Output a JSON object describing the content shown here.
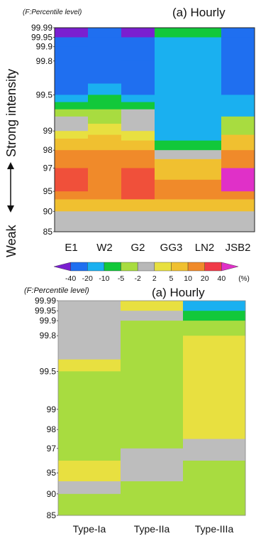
{
  "chart_data": [
    {
      "type": "heatmap",
      "panel": "top",
      "note": "(F:Percentile level)",
      "title": "(a) Hourly",
      "ylabel_strong": "Strong intensity",
      "ylabel_weak": "Weak",
      "yticks": [
        "99.99",
        "99.95",
        "99.9",
        "99.8",
        "99.5",
        "99",
        "98",
        "97",
        "95",
        "90",
        "85"
      ],
      "columns": [
        "E1",
        "W2",
        "G2",
        "GG3",
        "LN2",
        "JSB2"
      ],
      "cells": [
        [
          [
            99.99,
            99.95,
            "-40"
          ],
          [
            99.95,
            99.9,
            "-20"
          ],
          [
            99.9,
            99.5,
            "-20"
          ],
          [
            99.5,
            99.4,
            "-10"
          ],
          [
            99.4,
            99.3,
            "-5"
          ],
          [
            99.3,
            99.2,
            "-2"
          ],
          [
            99.2,
            99,
            "2"
          ],
          [
            99,
            98.6,
            "5"
          ],
          [
            98.6,
            98,
            "10"
          ],
          [
            98,
            97,
            "20"
          ],
          [
            97,
            95,
            "30"
          ],
          [
            95,
            93,
            "20"
          ],
          [
            93,
            90,
            "10"
          ],
          [
            90,
            85,
            "2"
          ]
        ],
        [
          [
            99.99,
            99.95,
            "-20"
          ],
          [
            99.95,
            99.6,
            "-20"
          ],
          [
            99.6,
            99.5,
            "-10"
          ],
          [
            99.5,
            99.3,
            "-5"
          ],
          [
            99.3,
            99.1,
            "-2"
          ],
          [
            99.1,
            98.8,
            "5"
          ],
          [
            98.8,
            98,
            "10"
          ],
          [
            98,
            93,
            "20"
          ],
          [
            93,
            90,
            "10"
          ],
          [
            90,
            85,
            "2"
          ]
        ],
        [
          [
            99.99,
            99.95,
            "-40"
          ],
          [
            99.95,
            99.8,
            "-20"
          ],
          [
            99.8,
            99.5,
            "-20"
          ],
          [
            99.5,
            99.4,
            "-10"
          ],
          [
            99.4,
            99.3,
            "-5"
          ],
          [
            99.3,
            99,
            "2"
          ],
          [
            99,
            98.5,
            "5"
          ],
          [
            98.5,
            98,
            "10"
          ],
          [
            98,
            97,
            "20"
          ],
          [
            97,
            93,
            "30"
          ],
          [
            93,
            90,
            "10"
          ],
          [
            90,
            85,
            "2"
          ]
        ],
        [
          [
            99.99,
            99.95,
            "-5"
          ],
          [
            99.95,
            99.9,
            "-10"
          ],
          [
            99.9,
            98.5,
            "-10"
          ],
          [
            98.5,
            98,
            "-5"
          ],
          [
            98,
            97.5,
            "2"
          ],
          [
            97.5,
            96,
            "10"
          ],
          [
            96,
            93,
            "20"
          ],
          [
            93,
            90,
            "10"
          ],
          [
            90,
            85,
            "2"
          ]
        ],
        [
          [
            99.99,
            99.95,
            "-5"
          ],
          [
            99.95,
            99.9,
            "-10"
          ],
          [
            99.9,
            98.5,
            "-10"
          ],
          [
            98.5,
            98,
            "-5"
          ],
          [
            98,
            97.5,
            "2"
          ],
          [
            97.5,
            96,
            "10"
          ],
          [
            96,
            93,
            "20"
          ],
          [
            93,
            90,
            "10"
          ],
          [
            90,
            85,
            "2"
          ]
        ],
        [
          [
            99.99,
            99.95,
            "-20"
          ],
          [
            99.95,
            99.5,
            "-20"
          ],
          [
            99.5,
            99.2,
            "-10"
          ],
          [
            99.2,
            98.8,
            "-2"
          ],
          [
            98.8,
            98,
            "10"
          ],
          [
            98,
            97,
            "20"
          ],
          [
            97,
            95,
            "40"
          ],
          [
            95,
            93,
            "20"
          ],
          [
            93,
            90,
            "10"
          ],
          [
            90,
            85,
            "2"
          ]
        ]
      ],
      "legend": {
        "values": [
          "-40",
          "-20",
          "-10",
          "-5",
          "-2",
          "2",
          "5",
          "10",
          "20",
          "40"
        ],
        "unit": "(%)",
        "colors": [
          "#7a1fd0",
          "#1f6ff0",
          "#1ab0f0",
          "#12c83a",
          "#a8dc40",
          "#b8b8b8",
          "#e8e040",
          "#f0c030",
          "#f08a2a",
          "#f03a48",
          "#e030c8"
        ]
      }
    },
    {
      "type": "heatmap",
      "panel": "bottom",
      "note": "(F:Percentile level)",
      "title": "(a) Hourly",
      "yticks": [
        "99.99",
        "99.95",
        "99.9",
        "99.8",
        "99.5",
        "99",
        "98",
        "97",
        "95",
        "90",
        "85"
      ],
      "columns": [
        "Type-Ia",
        "Type-IIa",
        "Type-IIIa"
      ],
      "cells": [
        [
          [
            99.99,
            99.6,
            "2"
          ],
          [
            99.6,
            99.5,
            "5"
          ],
          [
            99.5,
            96,
            "-2"
          ],
          [
            96,
            93,
            "5"
          ],
          [
            93,
            90,
            "2"
          ],
          [
            90,
            85,
            "-2"
          ]
        ],
        [
          [
            99.99,
            99.95,
            "5"
          ],
          [
            99.95,
            99.9,
            "2"
          ],
          [
            99.9,
            97,
            "-2"
          ],
          [
            97,
            93,
            "2"
          ],
          [
            93,
            85,
            "-2"
          ]
        ],
        [
          [
            99.99,
            99.95,
            "-10"
          ],
          [
            99.95,
            99.9,
            "-5"
          ],
          [
            99.9,
            99.8,
            "-2"
          ],
          [
            99.8,
            97.5,
            "5"
          ],
          [
            97.5,
            96,
            "2"
          ],
          [
            96,
            85,
            "-2"
          ]
        ]
      ]
    }
  ]
}
